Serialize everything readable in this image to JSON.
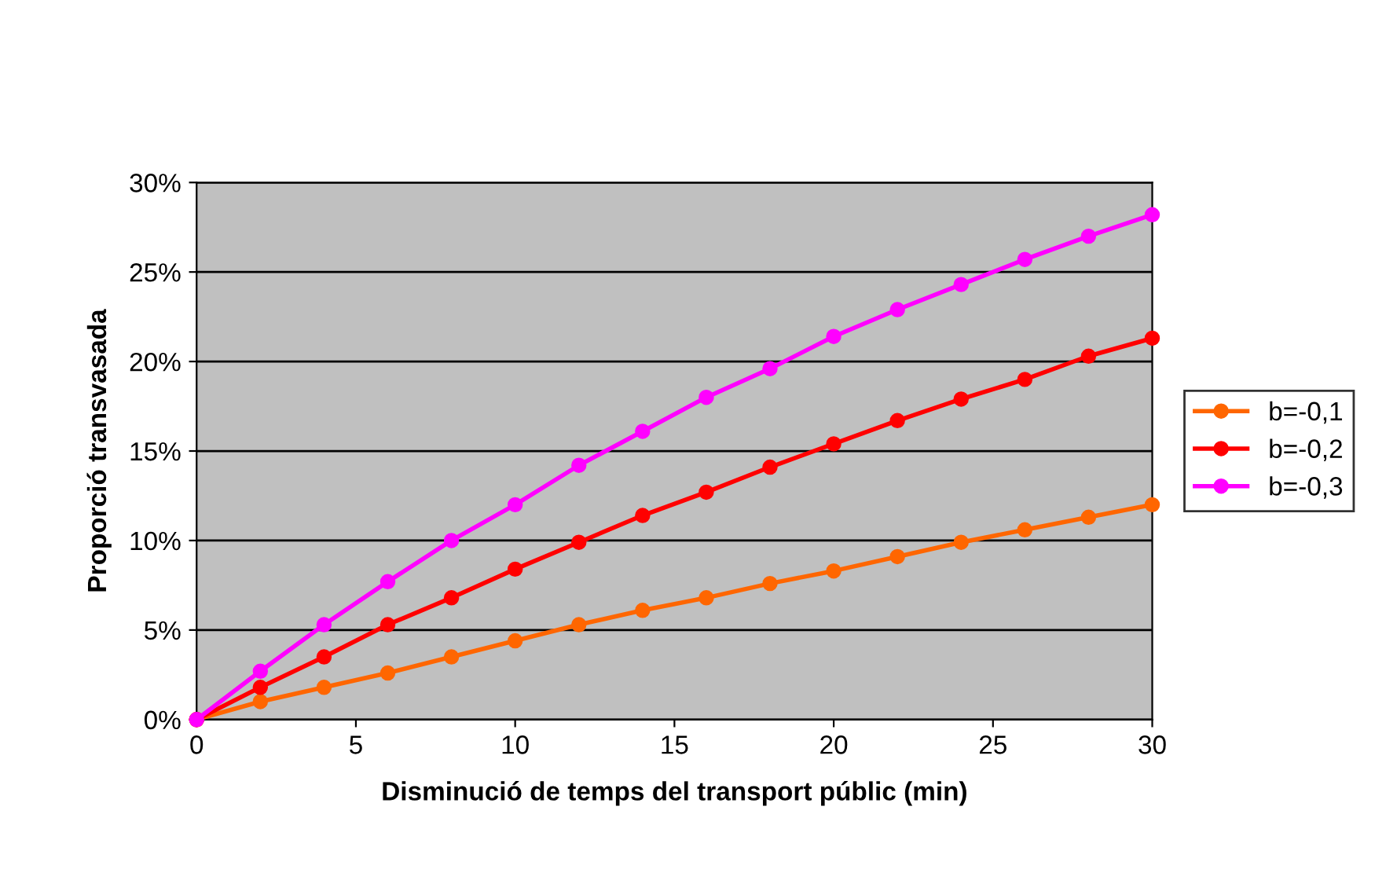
{
  "chart_data": {
    "type": "line",
    "xlabel": "Disminució de temps del transport públic (min)",
    "ylabel": "Proporció transvasada",
    "x": [
      0,
      2,
      4,
      6,
      8,
      10,
      12,
      14,
      16,
      18,
      20,
      22,
      24,
      26,
      28,
      30
    ],
    "series": [
      {
        "name": "b=-0,1",
        "color": "#ff6600",
        "values": [
          0,
          1.0,
          1.8,
          2.6,
          3.5,
          4.4,
          5.3,
          6.1,
          6.8,
          7.6,
          8.3,
          9.1,
          9.9,
          10.6,
          11.3,
          12.0
        ]
      },
      {
        "name": "b=-0,2",
        "color": "#ff0000",
        "values": [
          0,
          1.8,
          3.5,
          5.3,
          6.8,
          8.4,
          9.9,
          11.4,
          12.7,
          14.1,
          15.4,
          16.7,
          17.9,
          19.0,
          20.3,
          21.3
        ]
      },
      {
        "name": "b=-0,3",
        "color": "#ff00ff",
        "values": [
          0,
          2.7,
          5.3,
          7.7,
          10.0,
          12.0,
          14.2,
          16.1,
          18.0,
          19.6,
          21.4,
          22.9,
          24.3,
          25.7,
          27.0,
          28.2
        ]
      }
    ],
    "xlim": [
      0,
      30
    ],
    "xticks": [
      0,
      5,
      10,
      15,
      20,
      25,
      30
    ],
    "ylim": [
      0,
      30
    ],
    "yticks": [
      {
        "value": 0,
        "label": "0%"
      },
      {
        "value": 5,
        "label": "5%"
      },
      {
        "value": 10,
        "label": "10%"
      },
      {
        "value": 15,
        "label": "15%"
      },
      {
        "value": 20,
        "label": "20%"
      },
      {
        "value": 25,
        "label": "25%"
      },
      {
        "value": 30,
        "label": "30%"
      }
    ],
    "grid": "y",
    "legend": "right",
    "marker": "circle",
    "line_style": "solid"
  }
}
